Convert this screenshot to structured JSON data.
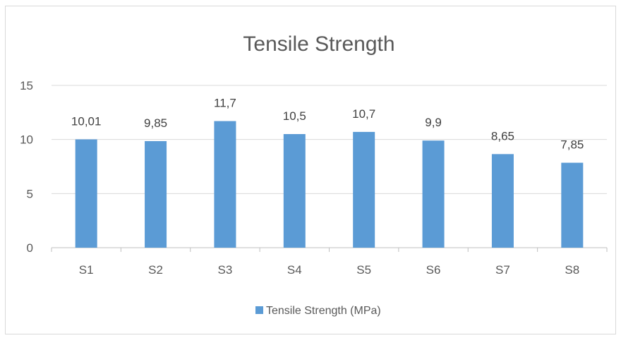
{
  "chart_data": {
    "type": "bar",
    "title": "Tensile Strength",
    "categories": [
      "S1",
      "S2",
      "S3",
      "S4",
      "S5",
      "S6",
      "S7",
      "S8"
    ],
    "series": [
      {
        "name": "Tensile Strength (MPa)",
        "values": [
          10.01,
          9.85,
          11.7,
          10.5,
          10.7,
          9.9,
          8.65,
          7.85
        ],
        "labels": [
          "10,01",
          "9,85",
          "11,7",
          "10,5",
          "10,7",
          "9,9",
          "8,65",
          "7,85"
        ],
        "color": "#5b9bd5"
      }
    ],
    "ylim": [
      0,
      15
    ],
    "yticks": [
      0,
      5,
      10,
      15
    ],
    "grid": true,
    "legend_position": "bottom",
    "colors": {
      "gridline": "#d9d9d9",
      "text": "#595959",
      "axis": "#bfbfbf"
    }
  }
}
